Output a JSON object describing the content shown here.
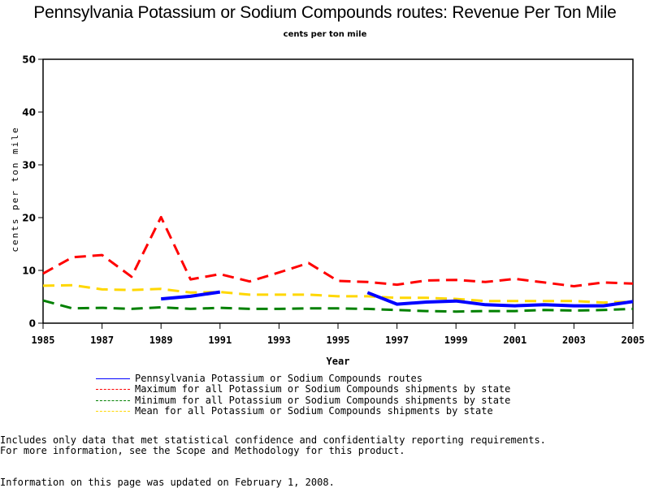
{
  "chart_data": {
    "type": "line",
    "title": "Pennsylvania Potassium or Sodium Compounds routes: Revenue Per Ton Mile",
    "subtitle": "cents per ton mile",
    "xlabel": "Year",
    "ylabel": "cents per ton mile",
    "xlim": [
      1985,
      2005
    ],
    "ylim": [
      0,
      50
    ],
    "x_ticks": [
      "1985",
      "1987",
      "1989",
      "1991",
      "1993",
      "1995",
      "1997",
      "1999",
      "2001",
      "2003",
      "2005"
    ],
    "y_ticks": [
      "0",
      "10",
      "20",
      "30",
      "40",
      "50"
    ],
    "grid": false,
    "legend_position": "bottom",
    "x": [
      1985,
      1986,
      1987,
      1988,
      1989,
      1990,
      1991,
      1992,
      1993,
      1994,
      1995,
      1996,
      1997,
      1998,
      1999,
      2000,
      2001,
      2002,
      2003,
      2004,
      2005
    ],
    "series": [
      {
        "name": "Pennsylvania Potassium or Sodium Compounds routes",
        "color": "#0000ff",
        "style": "solid",
        "values": [
          null,
          null,
          null,
          null,
          4.6,
          5.1,
          5.9,
          null,
          null,
          null,
          null,
          5.8,
          3.6,
          4.0,
          4.2,
          3.5,
          3.3,
          3.5,
          3.3,
          3.3,
          4.1
        ]
      },
      {
        "name": "Maximum for all Potassium or Sodium Compounds shipments by state",
        "color": "#ff0000",
        "style": "dashed",
        "values": [
          9.4,
          12.5,
          12.9,
          8.8,
          20.1,
          8.3,
          9.3,
          7.9,
          9.6,
          11.4,
          8.0,
          7.8,
          7.3,
          8.1,
          8.2,
          7.8,
          8.4,
          7.7,
          7.0,
          7.7,
          7.5
        ]
      },
      {
        "name": "Minimum for all Potassium or Sodium Compounds shipments by state",
        "color": "#008000",
        "style": "dashed",
        "values": [
          4.3,
          2.8,
          2.9,
          2.7,
          3.0,
          2.7,
          2.9,
          2.7,
          2.7,
          2.8,
          2.8,
          2.7,
          2.5,
          2.3,
          2.2,
          2.3,
          2.3,
          2.5,
          2.4,
          2.5,
          2.7
        ]
      },
      {
        "name": "Mean for all Potassium or Sodium Compounds shipments by state",
        "color": "#ffd700",
        "style": "dashed",
        "values": [
          7.1,
          7.2,
          6.4,
          6.3,
          6.5,
          5.8,
          5.9,
          5.4,
          5.4,
          5.4,
          5.1,
          5.1,
          4.8,
          4.8,
          4.6,
          4.2,
          4.2,
          4.2,
          4.2,
          3.9,
          4.1
        ]
      }
    ]
  },
  "notes": {
    "line1": "Includes only data that met statistical confidence and confidentialty reporting requirements.",
    "line2": "For more information, see the Scope and Methodology for this product.",
    "updated": "Information on this page was updated on February 1, 2008."
  }
}
